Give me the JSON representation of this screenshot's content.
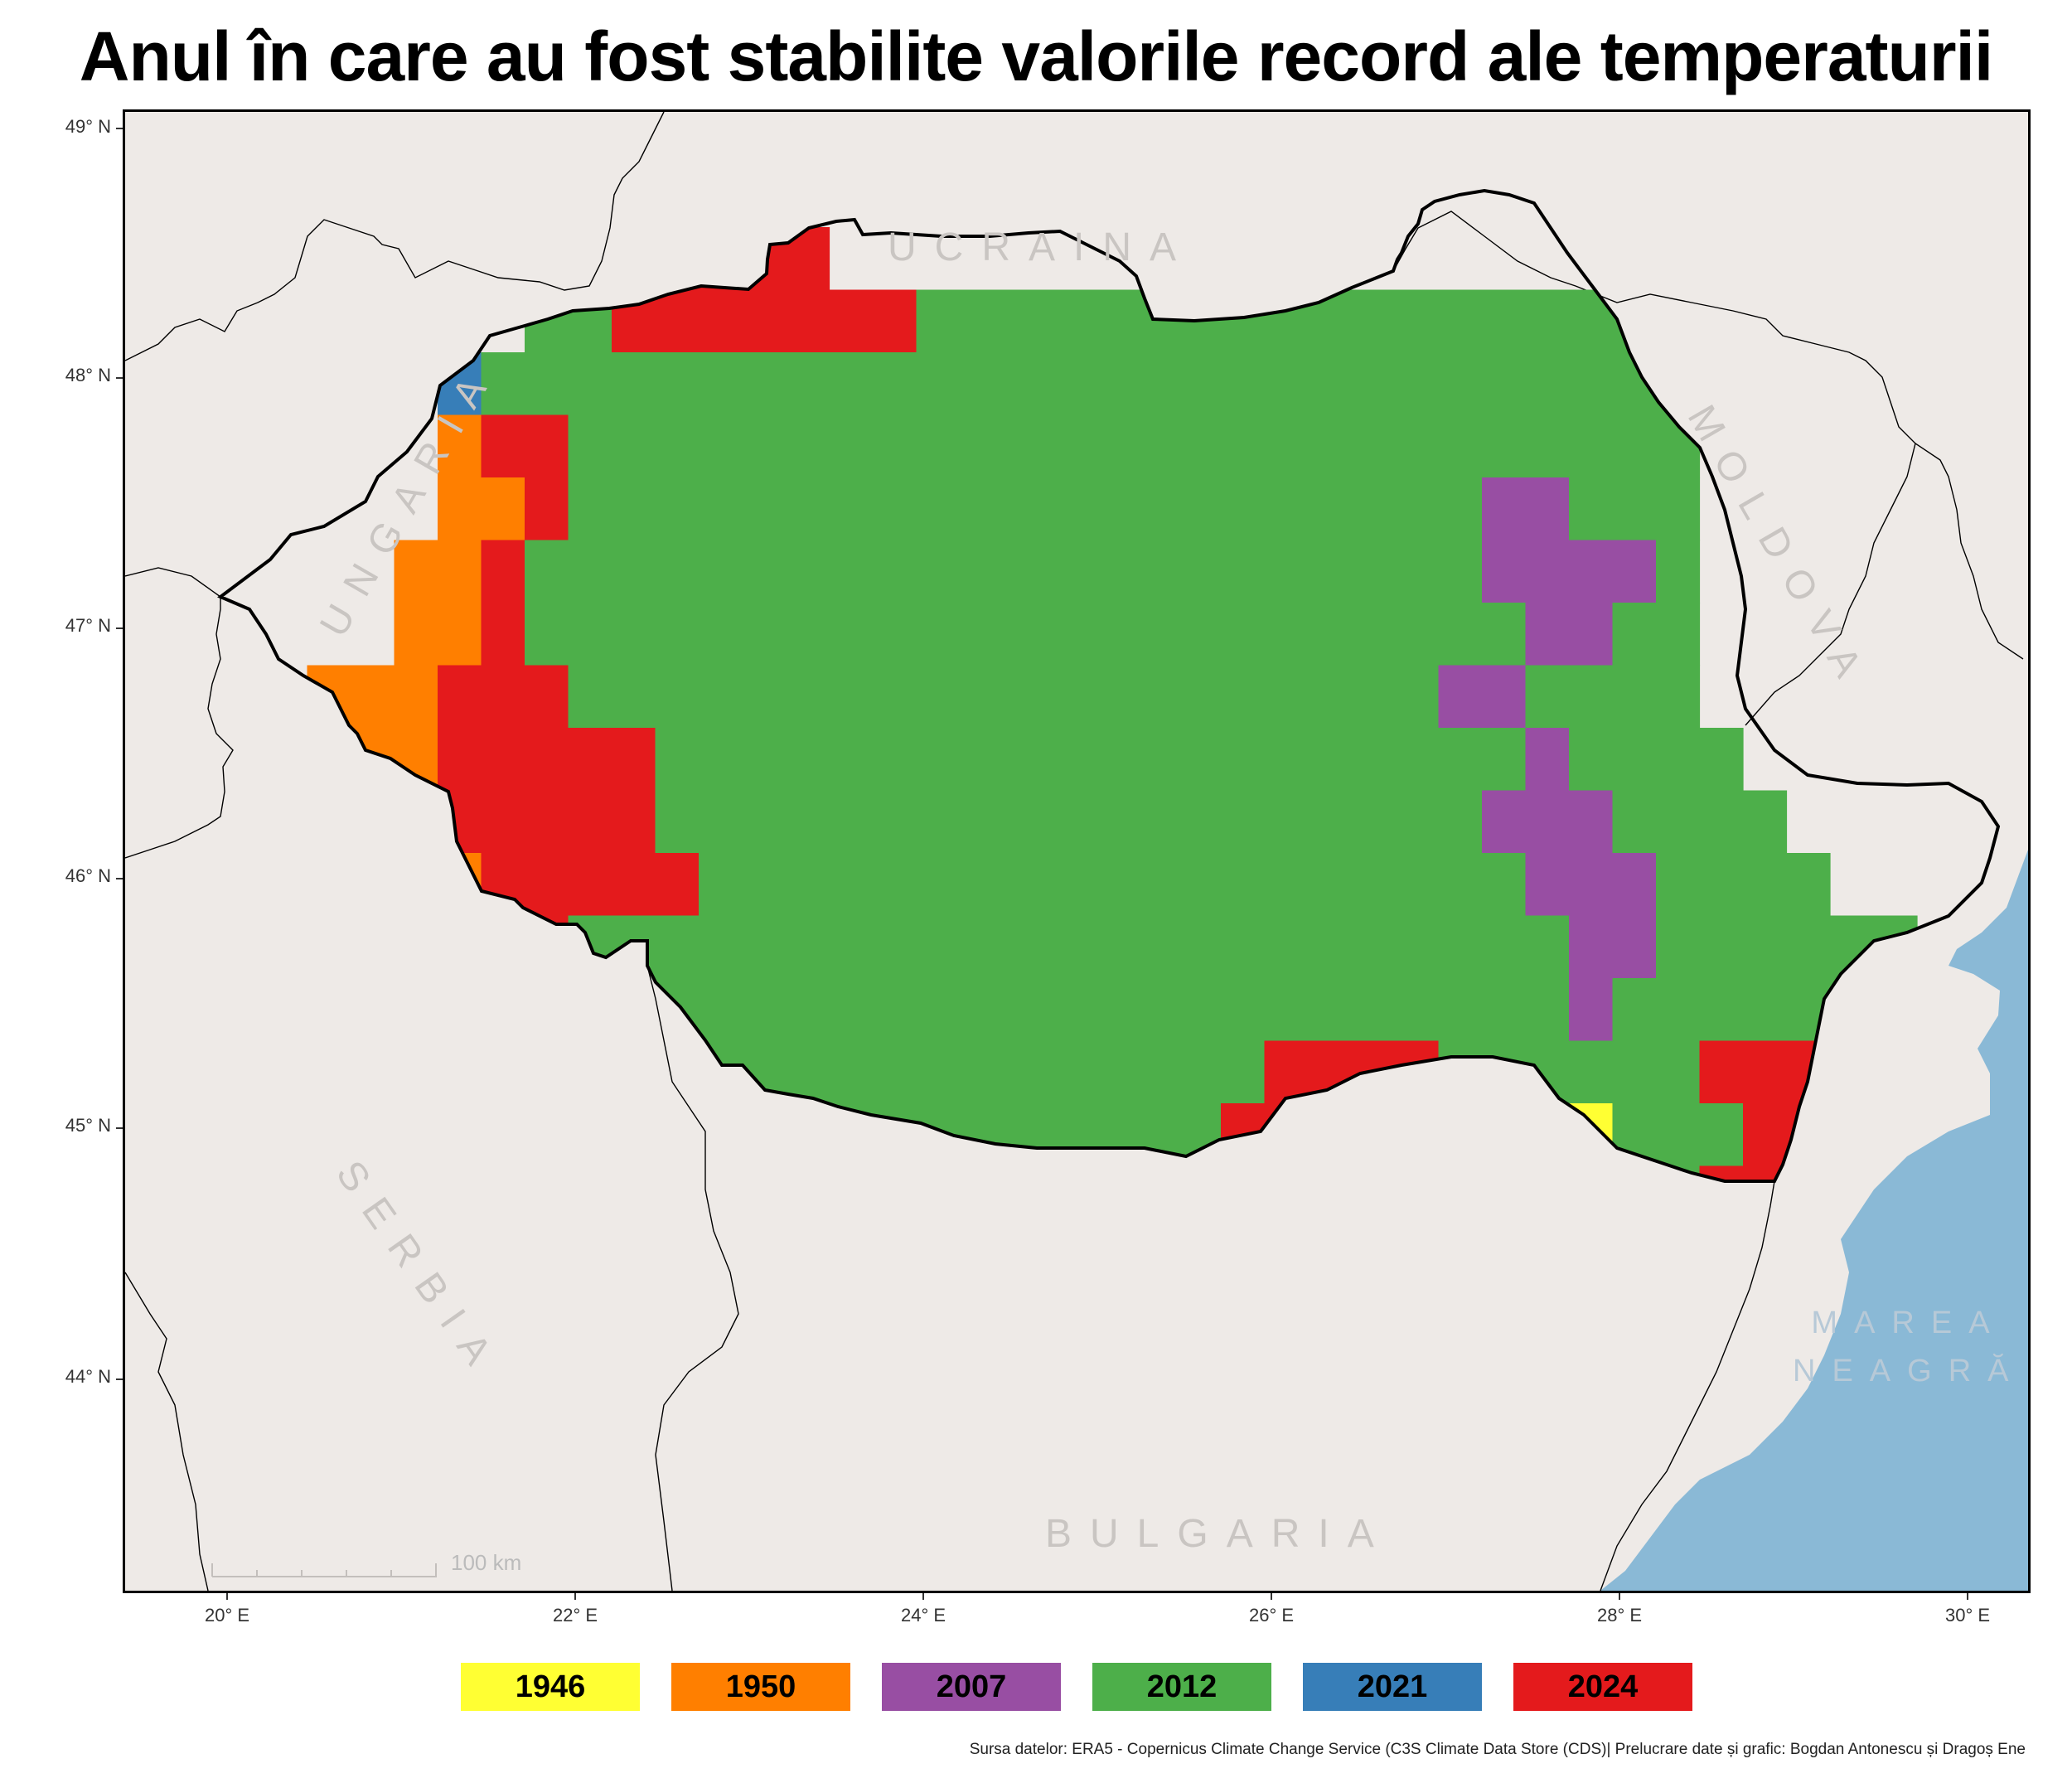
{
  "title": "Anul în care au fost stabilite valorile record ale temperaturii",
  "axes": {
    "lat_labels": [
      "49° N",
      "48° N",
      "47° N",
      "46° N",
      "45° N",
      "44° N"
    ],
    "lon_labels": [
      "20° E",
      "22° E",
      "24° E",
      "26° E",
      "28° E",
      "30° E"
    ]
  },
  "countries": {
    "ukraine": "UCRAINA",
    "hungary": "UNGARIA",
    "moldova": "MOLDOVA",
    "serbia": "SERBIA",
    "bulgaria": "BULGARIA",
    "sea_line1": "MAREA",
    "sea_line2": "NEAGRĂ"
  },
  "scale_bar": {
    "label": "100 km"
  },
  "legend": [
    {
      "year": "1946",
      "color": "#ffff33"
    },
    {
      "year": "1950",
      "color": "#ff7f00"
    },
    {
      "year": "2007",
      "color": "#984ea3"
    },
    {
      "year": "2012",
      "color": "#4daf4a"
    },
    {
      "year": "2021",
      "color": "#377eb8"
    },
    {
      "year": "2024",
      "color": "#e41a1c"
    }
  ],
  "colors": {
    "land_background": "#eeeae7",
    "sea": "#8ab9d6",
    "border": "#000000"
  },
  "source": "Sursa datelor: ERA5 - Copernicus Climate Change Service (C3S Climate Data Store (CDS)| Prelucrare date și grafic: Bogdan Antonescu și Dragoș Ene"
}
